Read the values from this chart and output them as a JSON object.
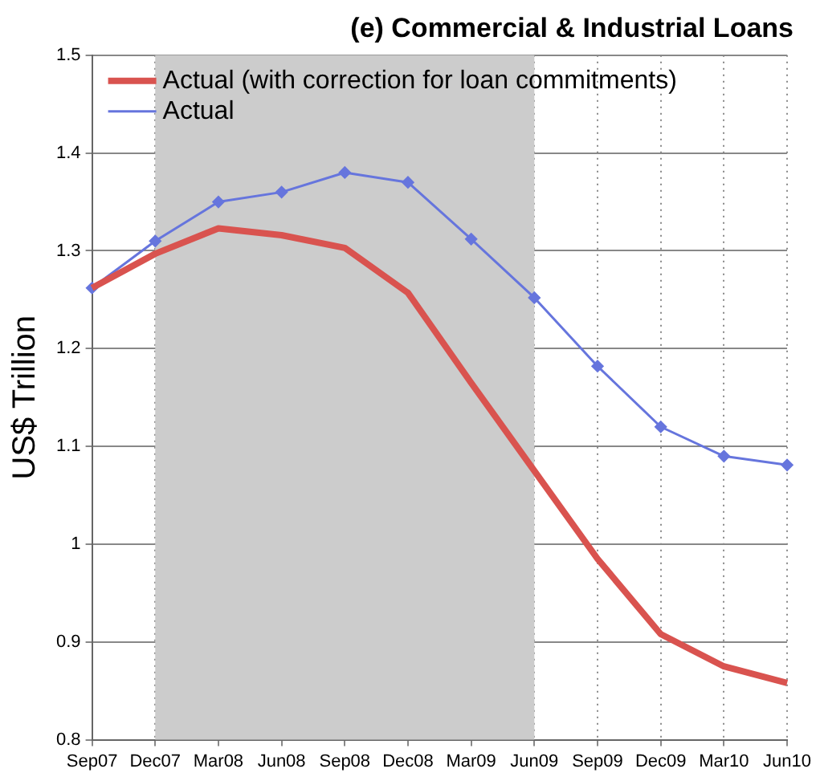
{
  "chart_data": {
    "type": "line",
    "title": "(e) Commercial & Industrial Loans",
    "ylabel": "US$ Trillion",
    "categories": [
      "Sep07",
      "Dec07",
      "Mar08",
      "Jun08",
      "Sep08",
      "Dec08",
      "Mar09",
      "Jun09",
      "Sep09",
      "Dec09",
      "Mar10",
      "Jun10"
    ],
    "series": [
      {
        "name": "Actual (with correction for loan commitments)",
        "color": "#d9534f",
        "values": [
          1.262,
          1.297,
          1.323,
          1.316,
          1.303,
          1.257,
          1.165,
          1.075,
          0.985,
          0.908,
          0.875,
          0.858
        ],
        "marker": "none"
      },
      {
        "name": "Actual",
        "color": "#6675dd",
        "values": [
          1.262,
          1.31,
          1.35,
          1.36,
          1.38,
          1.37,
          1.312,
          1.252,
          1.182,
          1.12,
          1.09,
          1.081
        ],
        "marker": "diamond"
      }
    ],
    "bands": [
      {
        "axis": "x",
        "from": "Dec07",
        "to": "Jun09",
        "color": "#cccccc"
      }
    ],
    "ylim": [
      0.8,
      1.5
    ],
    "yticks": [
      0.8,
      0.9,
      1,
      1.1,
      1.2,
      1.3,
      1.4,
      1.5
    ],
    "grid": true,
    "legend": "top left",
    "line_style": "solid"
  }
}
